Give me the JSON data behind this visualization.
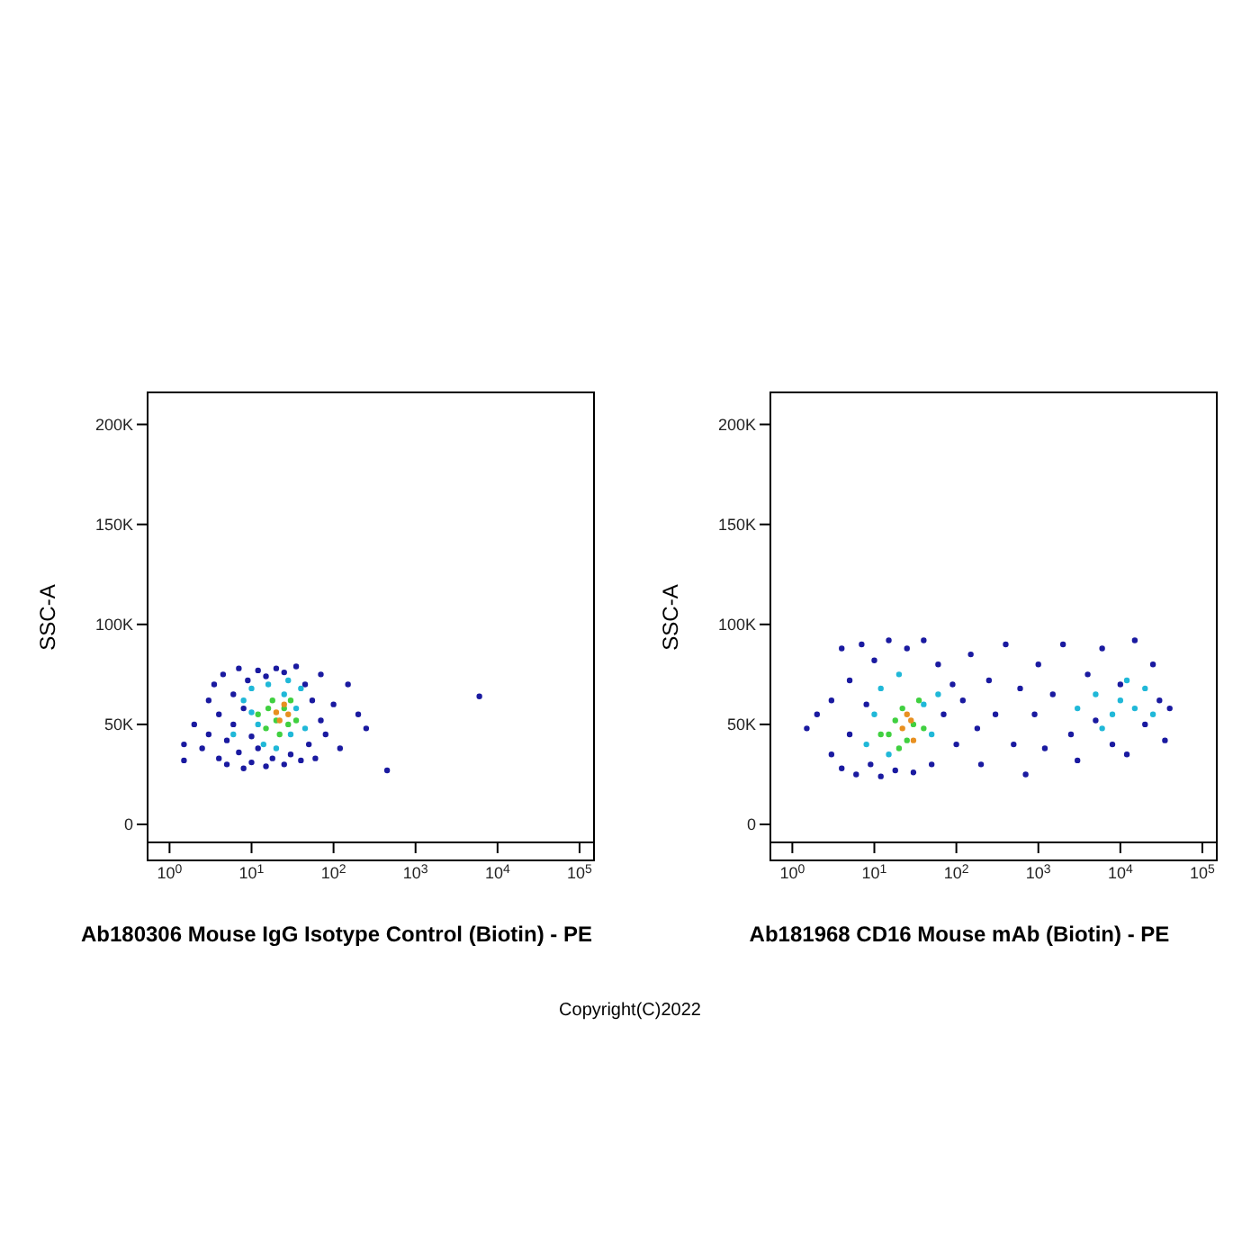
{
  "chart_data": [
    {
      "type": "scatter",
      "xlabel": "Ab180306 Mouse IgG Isotype Control (Biotin) - PE",
      "ylabel": "SSC-A",
      "log": "x",
      "marker": "circle",
      "xlim": [
        0.54,
        150000
      ],
      "xticks": [
        {
          "value": 1,
          "label": "10$^{0}$"
        },
        {
          "value": 10,
          "label": "10$^{1}$"
        },
        {
          "value": 100,
          "label": "10$^{2}$"
        },
        {
          "value": 1000,
          "label": "10$^{3}$"
        },
        {
          "value": 10000,
          "label": "10$^{4}$"
        },
        {
          "value": 100000,
          "label": "10$^{5}$"
        }
      ],
      "ylim": [
        -9000,
        216000
      ],
      "yticks": [
        0,
        {
          "value": 50000,
          "label": "50K"
        },
        {
          "value": 100000,
          "label": "100K"
        },
        {
          "value": 150000,
          "label": "150K"
        },
        {
          "value": 200000,
          "label": "200K"
        }
      ],
      "annotations": [
        "Copyright(C)2022"
      ],
      "series": [
        {
          "color": "#1a1aa0",
          "x": [
            1.5,
            1.5,
            2,
            2.5,
            3,
            3,
            3.5,
            4,
            4,
            4.5,
            5,
            5,
            6,
            6,
            7,
            7,
            8,
            8,
            9,
            10,
            10,
            12,
            12,
            15,
            15,
            18,
            20,
            25,
            25,
            30,
            35,
            40,
            45,
            50,
            55,
            60,
            70,
            70,
            80,
            100,
            120,
            150,
            200,
            250,
            450,
            6000
          ],
          "values": [
            40000,
            32000,
            50000,
            38000,
            62000,
            45000,
            70000,
            33000,
            55000,
            75000,
            42000,
            30000,
            65000,
            50000,
            78000,
            36000,
            28000,
            58000,
            72000,
            44000,
            31000,
            77000,
            38000,
            29000,
            74000,
            33000,
            78000,
            30000,
            76000,
            35000,
            79000,
            32000,
            70000,
            40000,
            62000,
            33000,
            52000,
            75000,
            45000,
            60000,
            38000,
            70000,
            55000,
            48000,
            27000,
            64000
          ]
        },
        {
          "color": "#20b8d8",
          "x": [
            6,
            8,
            10,
            12,
            14,
            16,
            20,
            25,
            30,
            35,
            40,
            45,
            10,
            28
          ],
          "values": [
            45000,
            62000,
            68000,
            50000,
            40000,
            70000,
            38000,
            65000,
            45000,
            58000,
            68000,
            48000,
            56000,
            72000
          ]
        },
        {
          "color": "#40d040",
          "x": [
            12,
            15,
            18,
            20,
            22,
            25,
            28,
            30,
            35,
            16
          ],
          "values": [
            55000,
            48000,
            62000,
            52000,
            45000,
            58000,
            50000,
            62000,
            52000,
            58000
          ]
        },
        {
          "color": "#e89020",
          "x": [
            20,
            25,
            22,
            28
          ],
          "values": [
            56000,
            60000,
            52000,
            55000
          ]
        }
      ]
    },
    {
      "type": "scatter",
      "xlabel": "Ab181968 CD16 Mouse mAb (Biotin) - PE",
      "ylabel": "SSC-A",
      "log": "x",
      "marker": "circle",
      "xlim": [
        0.54,
        150000
      ],
      "xticks": [
        {
          "value": 1,
          "label": "10$^{0}$"
        },
        {
          "value": 10,
          "label": "10$^{1}$"
        },
        {
          "value": 100,
          "label": "10$^{2}$"
        },
        {
          "value": 1000,
          "label": "10$^{3}$"
        },
        {
          "value": 10000,
          "label": "10$^{4}$"
        },
        {
          "value": 100000,
          "label": "10$^{5}$"
        }
      ],
      "ylim": [
        -9000,
        216000
      ],
      "yticks": [
        0,
        {
          "value": 50000,
          "label": "50K"
        },
        {
          "value": 100000,
          "label": "100K"
        },
        {
          "value": 150000,
          "label": "150K"
        },
        {
          "value": 200000,
          "label": "200K"
        }
      ],
      "series": [
        {
          "color": "#1a1aa0",
          "x": [
            1.5,
            2,
            3,
            3,
            4,
            4,
            5,
            5,
            6,
            7,
            8,
            9,
            10,
            12,
            15,
            18,
            25,
            30,
            40,
            50,
            60,
            70,
            90,
            100,
            120,
            150,
            180,
            200,
            250,
            300,
            400,
            500,
            600,
            700,
            900,
            1000,
            1200,
            1500,
            2000,
            2500,
            3000,
            4000,
            5000,
            6000,
            8000,
            10000,
            12000,
            15000,
            20000,
            25000,
            30000,
            35000,
            40000
          ],
          "values": [
            48000,
            55000,
            35000,
            62000,
            28000,
            88000,
            45000,
            72000,
            25000,
            90000,
            60000,
            30000,
            82000,
            24000,
            92000,
            27000,
            88000,
            26000,
            92000,
            30000,
            80000,
            55000,
            70000,
            40000,
            62000,
            85000,
            48000,
            30000,
            72000,
            55000,
            90000,
            40000,
            68000,
            25000,
            55000,
            80000,
            38000,
            65000,
            90000,
            45000,
            32000,
            75000,
            52000,
            88000,
            40000,
            70000,
            35000,
            92000,
            50000,
            80000,
            62000,
            42000,
            58000
          ]
        },
        {
          "color": "#20b8d8",
          "x": [
            8,
            10,
            12,
            15,
            20,
            40,
            50,
            60,
            3000,
            5000,
            8000,
            10000,
            12000,
            15000,
            20000,
            25000,
            6000
          ],
          "values": [
            40000,
            55000,
            68000,
            35000,
            75000,
            60000,
            45000,
            65000,
            58000,
            65000,
            55000,
            62000,
            72000,
            58000,
            68000,
            55000,
            48000
          ]
        },
        {
          "color": "#40d040",
          "x": [
            15,
            18,
            20,
            22,
            25,
            30,
            35,
            40,
            12
          ],
          "values": [
            45000,
            52000,
            38000,
            58000,
            42000,
            50000,
            62000,
            48000,
            45000
          ]
        },
        {
          "color": "#e89020",
          "x": [
            22,
            28,
            30,
            25
          ],
          "values": [
            48000,
            52000,
            42000,
            55000
          ]
        }
      ]
    }
  ]
}
